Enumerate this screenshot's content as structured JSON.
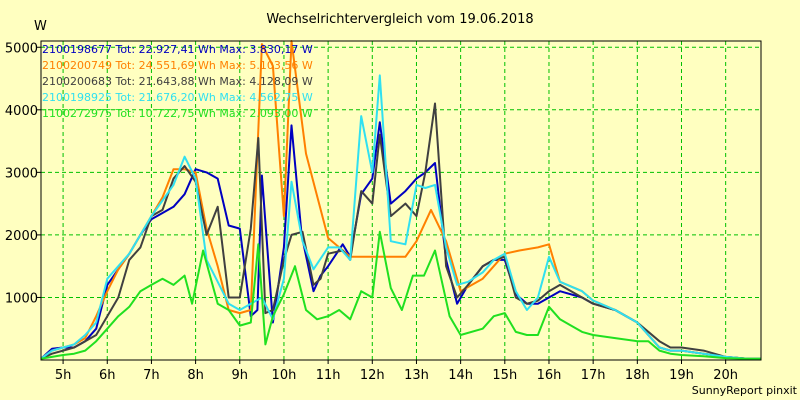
{
  "chart_data": {
    "type": "line",
    "title": "Wechselrichtervergleich vom 19.06.2018",
    "ylabel": "W",
    "xlabel": "",
    "credit": "SunnyReport pinxit",
    "xlim": [
      4.5,
      20.8
    ],
    "ylim": [
      0,
      5100
    ],
    "grid": true,
    "legend_position": "top-left",
    "yticks": [
      1000,
      2000,
      3000,
      4000,
      5000
    ],
    "xticks": [
      {
        "v": 5,
        "label": "5h"
      },
      {
        "v": 6,
        "label": "6h"
      },
      {
        "v": 7,
        "label": "7h"
      },
      {
        "v": 8,
        "label": "8h"
      },
      {
        "v": 9,
        "label": "9h"
      },
      {
        "v": 10,
        "label": "10h"
      },
      {
        "v": 11,
        "label": "11h"
      },
      {
        "v": 12,
        "label": "12h"
      },
      {
        "v": 13,
        "label": "13h"
      },
      {
        "v": 14,
        "label": "14h"
      },
      {
        "v": 15,
        "label": "15h"
      },
      {
        "v": 16,
        "label": "16h"
      },
      {
        "v": 17,
        "label": "17h"
      },
      {
        "v": 18,
        "label": "18h"
      },
      {
        "v": 19,
        "label": "19h"
      },
      {
        "v": 20,
        "label": "20h"
      }
    ],
    "series": [
      {
        "name": "2100198677 Tot: 22.927,41 Wh Max: 3.830,17 W",
        "color": "#0000c0",
        "x": [
          4.5,
          4.75,
          5.0,
          5.25,
          5.5,
          5.75,
          6.0,
          6.25,
          6.5,
          6.75,
          7.0,
          7.25,
          7.5,
          7.75,
          8.0,
          8.25,
          8.5,
          8.75,
          9.0,
          9.25,
          9.4,
          9.5,
          9.75,
          10.0,
          10.17,
          10.4,
          10.67,
          10.83,
          11.0,
          11.33,
          11.5,
          11.75,
          12.0,
          12.17,
          12.42,
          12.75,
          13.0,
          13.2,
          13.42,
          13.67,
          13.92,
          14.17,
          14.5,
          14.75,
          15.0,
          15.25,
          15.5,
          15.75,
          16.0,
          16.25,
          16.75,
          17.0,
          17.5,
          18.0,
          18.5,
          18.75,
          19.0,
          19.5,
          20.0,
          20.5,
          20.8
        ],
        "y": [
          20,
          180,
          200,
          200,
          300,
          500,
          1200,
          1450,
          1700,
          2000,
          2250,
          2350,
          2450,
          2650,
          3050,
          3000,
          2900,
          2150,
          2100,
          700,
          800,
          2950,
          600,
          1800,
          3750,
          2000,
          1100,
          1350,
          1500,
          1850,
          1650,
          2650,
          2900,
          3800,
          2500,
          2700,
          2900,
          3000,
          3150,
          1600,
          900,
          1200,
          1500,
          1600,
          1600,
          1050,
          900,
          900,
          1000,
          1100,
          1000,
          900,
          800,
          600,
          200,
          150,
          150,
          100,
          50,
          20,
          20
        ]
      },
      {
        "name": "2100200749 Tot: 24.551,69 Wh Max: 5.103,56 W",
        "color": "#ff8000",
        "x": [
          4.5,
          4.75,
          5.0,
          5.25,
          5.5,
          5.75,
          6.0,
          6.25,
          6.5,
          6.75,
          7.0,
          7.25,
          7.5,
          7.75,
          8.0,
          8.25,
          8.5,
          8.75,
          9.0,
          9.25,
          9.5,
          9.75,
          10.0,
          10.17,
          10.5,
          11.0,
          11.25,
          11.5,
          12.0,
          12.5,
          12.75,
          13.0,
          13.33,
          13.67,
          14.0,
          14.5,
          15.0,
          15.33,
          15.75,
          16.0,
          16.25,
          16.75,
          17.0,
          17.5,
          18.0,
          18.5,
          18.75,
          19.0,
          19.5,
          20.0,
          20.5,
          20.8
        ],
        "y": [
          20,
          150,
          200,
          250,
          350,
          700,
          1100,
          1450,
          1700,
          2000,
          2300,
          2600,
          3050,
          3050,
          3000,
          2100,
          1500,
          800,
          750,
          800,
          5050,
          4700,
          2300,
          5100,
          3300,
          1950,
          1800,
          1650,
          1650,
          1650,
          1650,
          1900,
          2400,
          1900,
          1100,
          1300,
          1700,
          1750,
          1800,
          1850,
          1250,
          1100,
          950,
          800,
          600,
          200,
          150,
          150,
          100,
          50,
          20,
          20
        ]
      },
      {
        "name": "2100200683 Tot: 21.643,88 Wh Max: 4.128,09 W",
        "color": "#404040",
        "x": [
          4.5,
          4.75,
          5.0,
          5.25,
          5.5,
          5.75,
          6.0,
          6.25,
          6.5,
          6.75,
          7.0,
          7.25,
          7.5,
          7.75,
          8.0,
          8.25,
          8.5,
          8.75,
          9.0,
          9.25,
          9.42,
          9.58,
          9.75,
          10.0,
          10.17,
          10.42,
          10.67,
          10.83,
          11.0,
          11.33,
          11.5,
          11.75,
          12.0,
          12.17,
          12.42,
          12.75,
          13.0,
          13.2,
          13.42,
          13.67,
          13.92,
          14.17,
          14.5,
          14.75,
          15.0,
          15.25,
          15.5,
          15.75,
          16.0,
          16.25,
          16.75,
          17.0,
          17.5,
          18.0,
          18.5,
          18.75,
          19.0,
          19.5,
          20.0,
          20.5,
          20.8
        ],
        "y": [
          20,
          100,
          150,
          200,
          300,
          400,
          700,
          1000,
          1600,
          1800,
          2300,
          2400,
          2900,
          3100,
          2850,
          2000,
          2450,
          1000,
          1000,
          2100,
          3550,
          750,
          800,
          1600,
          2000,
          2050,
          1200,
          1300,
          1700,
          1750,
          1600,
          2700,
          2500,
          3600,
          2300,
          2500,
          2300,
          3000,
          4100,
          1500,
          1000,
          1200,
          1500,
          1600,
          1650,
          1000,
          900,
          950,
          1100,
          1200,
          1000,
          900,
          800,
          600,
          300,
          200,
          200,
          150,
          50,
          20,
          20
        ]
      },
      {
        "name": "2100198925 Tot: 21.676,20 Wh Max: 4.562,75 W",
        "color": "#30e0f0",
        "x": [
          4.5,
          4.75,
          5.0,
          5.25,
          5.5,
          5.75,
          6.0,
          6.25,
          6.5,
          6.75,
          7.0,
          7.25,
          7.5,
          7.75,
          8.0,
          8.25,
          8.5,
          8.75,
          9.0,
          9.25,
          9.5,
          9.75,
          10.0,
          10.17,
          10.42,
          10.67,
          11.0,
          11.25,
          11.5,
          11.75,
          12.0,
          12.17,
          12.42,
          12.75,
          13.0,
          13.2,
          13.42,
          13.67,
          13.92,
          14.17,
          14.5,
          14.75,
          15.0,
          15.25,
          15.5,
          15.75,
          16.0,
          16.25,
          16.75,
          17.0,
          17.5,
          18.0,
          18.5,
          18.75,
          19.0,
          19.5,
          20.0,
          20.5,
          20.8
        ],
        "y": [
          20,
          150,
          200,
          250,
          400,
          600,
          1300,
          1500,
          1700,
          2000,
          2300,
          2550,
          2800,
          3250,
          2900,
          1600,
          1250,
          900,
          800,
          900,
          1000,
          650,
          1300,
          2850,
          1900,
          1450,
          1800,
          1800,
          1600,
          3900,
          3000,
          4550,
          1900,
          1850,
          2800,
          2750,
          2800,
          1800,
          1200,
          1250,
          1400,
          1600,
          1700,
          1100,
          800,
          1000,
          1650,
          1250,
          1100,
          950,
          800,
          600,
          200,
          150,
          150,
          100,
          50,
          20,
          20
        ]
      },
      {
        "name": "1100272975 Tot: 10.722,75 Wh Max: 2.093,00 W",
        "color": "#20e020",
        "x": [
          4.5,
          4.75,
          5.0,
          5.25,
          5.5,
          5.75,
          6.0,
          6.25,
          6.5,
          6.75,
          7.0,
          7.25,
          7.5,
          7.75,
          7.92,
          8.17,
          8.5,
          8.75,
          9.0,
          9.25,
          9.42,
          9.58,
          9.75,
          10.0,
          10.25,
          10.5,
          10.75,
          11.0,
          11.25,
          11.5,
          11.75,
          12.0,
          12.17,
          12.42,
          12.67,
          12.92,
          13.17,
          13.42,
          13.75,
          14.0,
          14.5,
          14.75,
          15.0,
          15.25,
          15.5,
          15.75,
          16.0,
          16.25,
          16.5,
          16.75,
          17.0,
          17.5,
          18.0,
          18.25,
          18.5,
          18.75,
          19.0,
          19.5,
          20.0,
          20.5,
          20.8
        ],
        "y": [
          20,
          50,
          80,
          100,
          150,
          300,
          500,
          700,
          850,
          1100,
          1200,
          1300,
          1200,
          1350,
          900,
          1750,
          900,
          800,
          550,
          600,
          1850,
          250,
          700,
          1050,
          1500,
          800,
          650,
          700,
          800,
          650,
          1100,
          1000,
          2050,
          1150,
          800,
          1350,
          1350,
          1750,
          700,
          400,
          500,
          700,
          750,
          450,
          400,
          400,
          850,
          650,
          550,
          450,
          400,
          350,
          300,
          300,
          150,
          100,
          80,
          60,
          30,
          20,
          20
        ]
      }
    ]
  }
}
